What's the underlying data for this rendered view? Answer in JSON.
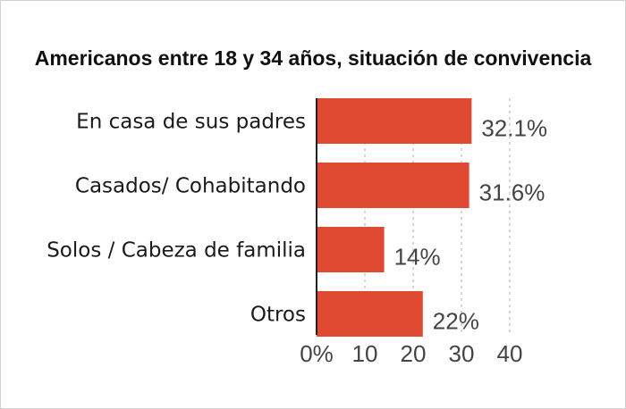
{
  "chart_data": {
    "type": "bar",
    "orientation": "horizontal",
    "title": "Americanos entre 18 y 34 años, situación de convivencia",
    "categories": [
      "En casa de sus padres",
      "Casados/ Cohabitando",
      "Solos / Cabeza de familia",
      "Otros"
    ],
    "values": [
      32.1,
      31.6,
      14,
      22
    ],
    "value_labels": [
      "32.1%",
      "31.6%",
      "14%",
      "22%"
    ],
    "xlim": [
      0,
      40
    ],
    "xticks": [
      0,
      10,
      20,
      30,
      40
    ],
    "xtick_labels": [
      "0%",
      "10",
      "20",
      "30",
      "40"
    ],
    "grid": "vertical-dashed",
    "bar_color": "#e04a33"
  }
}
